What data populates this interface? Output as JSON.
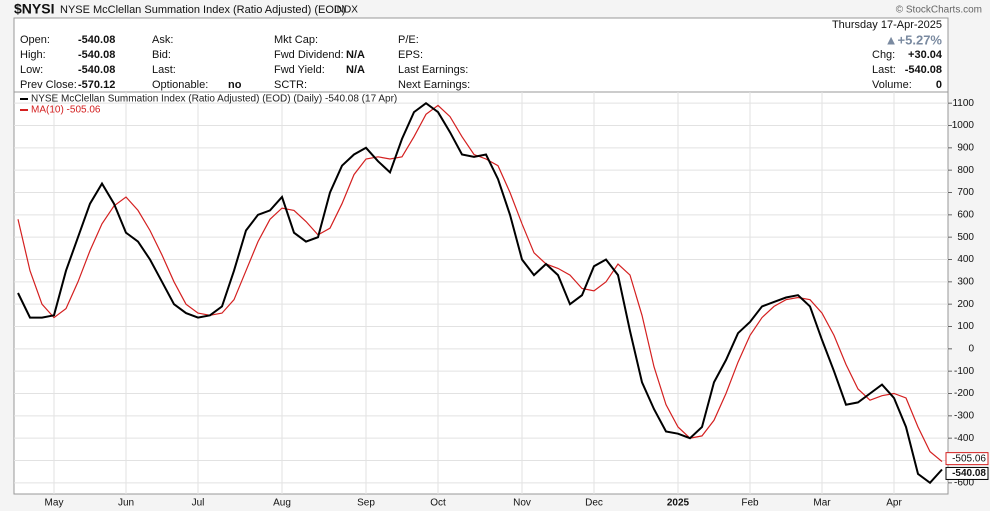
{
  "header": {
    "symbol": "$NYSI",
    "name": "NYSE McClellan Summation Index (Ratio Adjusted) (EOD)",
    "exchange": "INDX",
    "date": "Thursday  17-Apr-2025",
    "credit": "© StockCharts.com",
    "change_pct": "▲+5.27%",
    "columns": [
      [
        {
          "label": "Open:",
          "value": "-540.08"
        },
        {
          "label": "High:",
          "value": "-540.08"
        },
        {
          "label": "Low:",
          "value": "-540.08"
        },
        {
          "label": "Prev Close:",
          "value": "-570.12"
        }
      ],
      [
        {
          "label": "Ask:"
        },
        {
          "label": "Bid:"
        },
        {
          "label": "Last:"
        },
        {
          "label": "Optionable:",
          "value": "no"
        }
      ],
      [
        {
          "label": "Mkt Cap:"
        },
        {
          "label": "Fwd Dividend:",
          "value": "N/A"
        },
        {
          "label": "Fwd Yield:",
          "value": "N/A"
        },
        {
          "label": "SCTR:"
        }
      ],
      [
        {
          "label": "P/E:"
        },
        {
          "label": "EPS:"
        },
        {
          "label": "Last Earnings:"
        },
        {
          "label": "Next Earnings:"
        }
      ],
      [
        {
          "label": "Chg:",
          "value": "+30.04"
        },
        {
          "label": "Last:",
          "value": "-540.08"
        },
        {
          "label": "Volume:",
          "value": "0"
        }
      ]
    ]
  },
  "chart_data": {
    "type": "line",
    "categories": [
      null,
      null,
      null,
      "May",
      null,
      null,
      null,
      null,
      null,
      "Jun",
      null,
      null,
      null,
      null,
      null,
      "Jul",
      null,
      null,
      null,
      null,
      null,
      null,
      "Aug",
      null,
      null,
      null,
      null,
      null,
      null,
      "Sep",
      null,
      null,
      null,
      null,
      null,
      "Oct",
      null,
      null,
      null,
      null,
      null,
      null,
      "Nov",
      null,
      null,
      null,
      null,
      null,
      "Dec",
      null,
      null,
      null,
      null,
      null,
      null,
      "2025",
      null,
      null,
      null,
      null,
      null,
      "Feb",
      null,
      null,
      null,
      null,
      null,
      "Mar",
      null,
      null,
      null,
      null,
      null,
      "Apr",
      null,
      null,
      null,
      null
    ],
    "series": [
      {
        "name": "NYSE McClellan Summation Index (Ratio Adjusted) (EOD) (Daily) -540.08 (17 Apr)",
        "color": "#000000",
        "values": [
          250,
          140,
          140,
          150,
          350,
          500,
          650,
          740,
          650,
          520,
          480,
          400,
          300,
          200,
          160,
          140,
          150,
          190,
          350,
          530,
          600,
          620,
          680,
          520,
          480,
          500,
          700,
          820,
          870,
          900,
          840,
          790,
          940,
          1060,
          1100,
          1060,
          970,
          870,
          860,
          870,
          760,
          600,
          400,
          330,
          380,
          330,
          200,
          240,
          370,
          400,
          330,
          80,
          -150,
          -270,
          -370,
          -380,
          -400,
          -350,
          -150,
          -50,
          70,
          120,
          190,
          210,
          230,
          240,
          190,
          40,
          -100,
          -250,
          -240,
          -200,
          -160,
          -220,
          -350,
          -560,
          -600,
          -540.08
        ]
      },
      {
        "name": "MA(10) -505.06",
        "color": "#d42020",
        "values": [
          580,
          350,
          200,
          140,
          180,
          300,
          440,
          560,
          640,
          680,
          620,
          530,
          420,
          300,
          200,
          160,
          150,
          160,
          220,
          350,
          480,
          580,
          630,
          620,
          570,
          510,
          540,
          650,
          780,
          850,
          860,
          850,
          860,
          950,
          1050,
          1090,
          1040,
          950,
          870,
          850,
          820,
          700,
          560,
          430,
          380,
          360,
          330,
          270,
          260,
          300,
          380,
          330,
          150,
          -80,
          -250,
          -350,
          -400,
          -390,
          -320,
          -200,
          -60,
          60,
          140,
          190,
          220,
          230,
          220,
          160,
          60,
          -70,
          -180,
          -230,
          -210,
          -200,
          -220,
          -350,
          -460,
          -505.06
        ]
      }
    ],
    "ylim": [
      -650,
      1150
    ],
    "yticks": [
      1100,
      1000,
      900,
      800,
      700,
      600,
      500,
      400,
      300,
      200,
      100,
      0,
      -100,
      -200,
      -300,
      -400,
      -500,
      -600
    ],
    "grid": true
  }
}
